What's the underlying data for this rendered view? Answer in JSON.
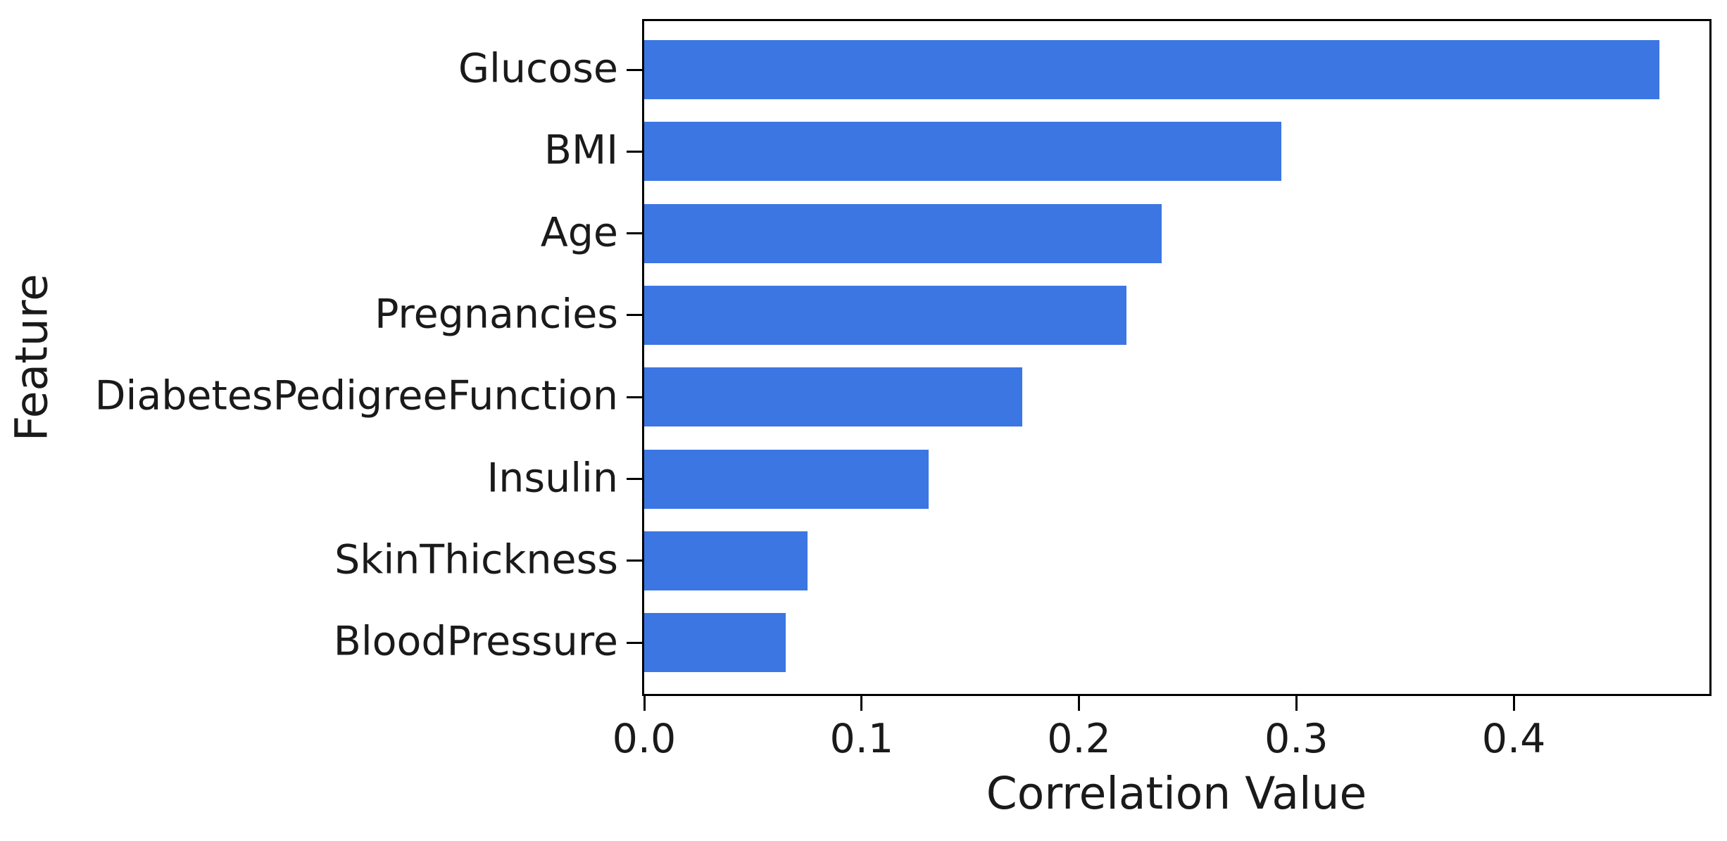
{
  "chart_data": {
    "type": "bar",
    "orientation": "horizontal",
    "title": "",
    "xlabel": "Correlation Value",
    "ylabel": "Feature",
    "categories": [
      "Glucose",
      "BMI",
      "Age",
      "Pregnancies",
      "DiabetesPedigreeFunction",
      "Insulin",
      "SkinThickness",
      "BloodPressure"
    ],
    "values": [
      0.467,
      0.293,
      0.238,
      0.222,
      0.174,
      0.131,
      0.075,
      0.065
    ],
    "xlim": [
      0.0,
      0.49
    ],
    "xticks": [
      0.0,
      0.1,
      0.2,
      0.3,
      0.4
    ],
    "xtick_labels": [
      "0.0",
      "0.1",
      "0.2",
      "0.3",
      "0.4"
    ],
    "bar_color": "#3B76E2",
    "spine_color": "#000000",
    "grid": false,
    "legend": null
  }
}
